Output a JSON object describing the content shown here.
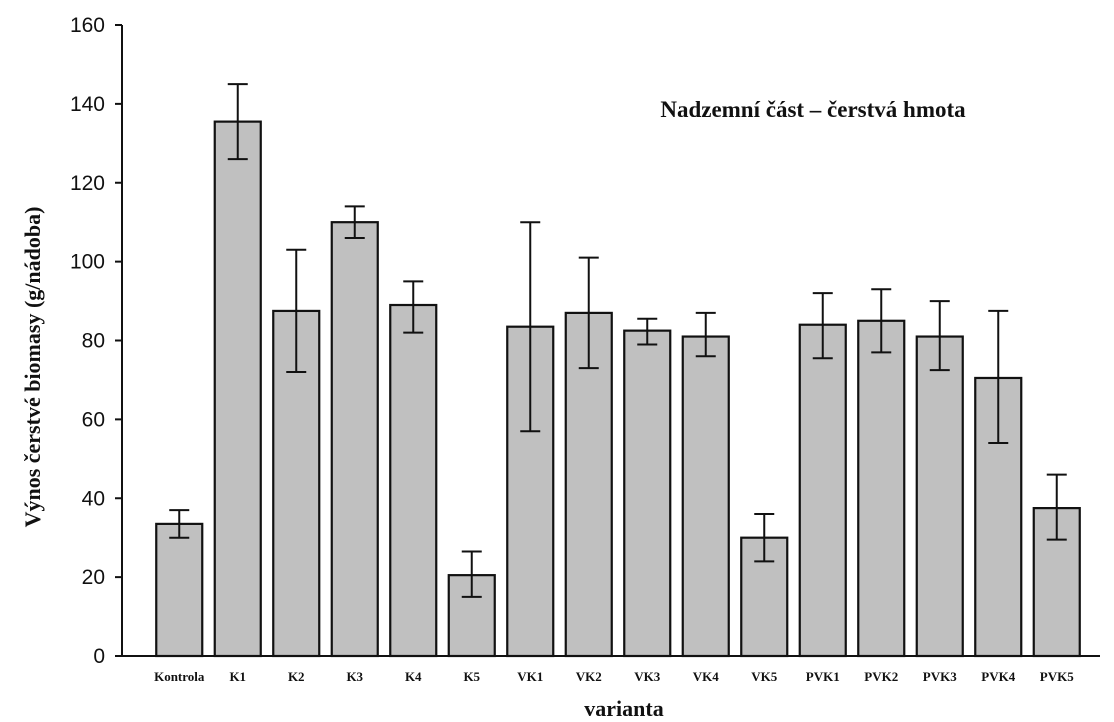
{
  "chart_data": {
    "type": "bar",
    "title": "Nadzemní část – čerstvá hmota",
    "xlabel": "varianta",
    "ylabel": "Výnos čerstvé biomasy (g/nádoba)",
    "ylim": [
      0,
      160
    ],
    "yticks": [
      0,
      20,
      40,
      60,
      80,
      100,
      120,
      140,
      160
    ],
    "grid": false,
    "categories": [
      "Kontrola",
      "K1",
      "K2",
      "K3",
      "K4",
      "K5",
      "VK1",
      "VK2",
      "VK3",
      "VK4",
      "VK5",
      "PVK1",
      "PVK2",
      "PVK3",
      "PVK4",
      "PVK5"
    ],
    "values": [
      33.5,
      135.5,
      87.5,
      110,
      89,
      20.5,
      83.5,
      87,
      82.5,
      81,
      30,
      84,
      85,
      81,
      70.5,
      37.5
    ],
    "error_low": [
      30,
      126,
      72,
      106,
      82,
      15,
      57,
      73,
      79,
      76,
      24,
      75.5,
      77,
      72.5,
      54,
      29.5
    ],
    "error_high": [
      37,
      145,
      103,
      114,
      95,
      26.5,
      110,
      101,
      85.5,
      87,
      36,
      92,
      93,
      90,
      87.5,
      46
    ]
  }
}
